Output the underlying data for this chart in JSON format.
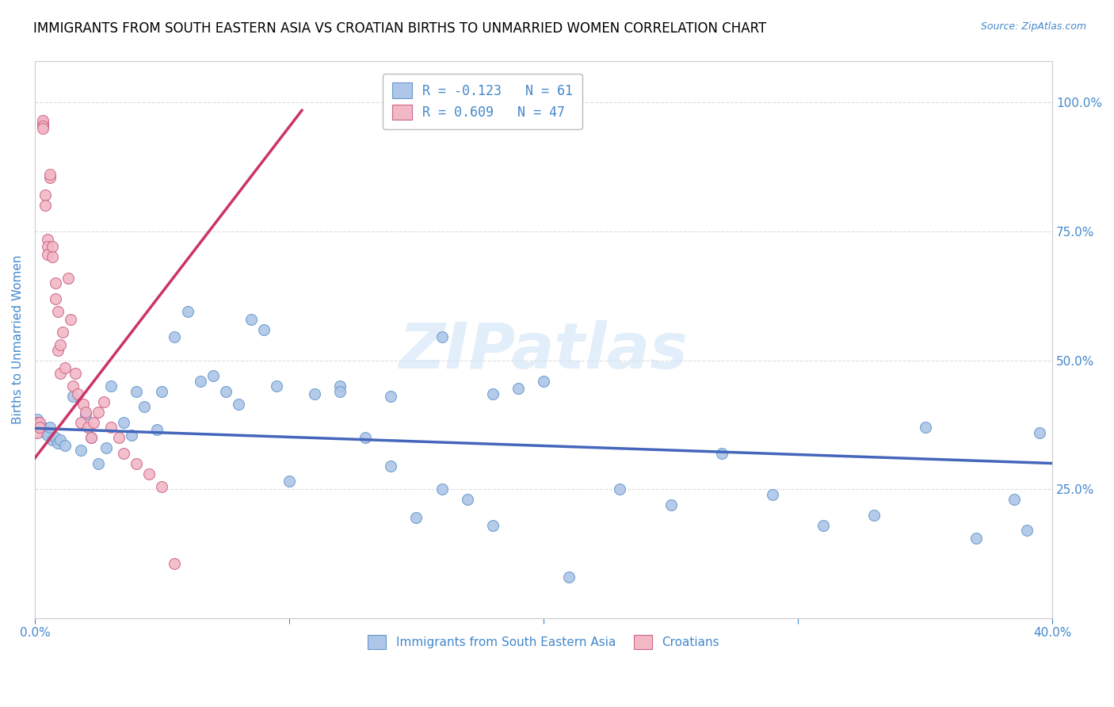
{
  "title": "IMMIGRANTS FROM SOUTH EASTERN ASIA VS CROATIAN BIRTHS TO UNMARRIED WOMEN CORRELATION CHART",
  "source": "Source: ZipAtlas.com",
  "ylabel": "Births to Unmarried Women",
  "right_yticks": [
    "100.0%",
    "75.0%",
    "50.0%",
    "25.0%"
  ],
  "right_ytick_vals": [
    1.0,
    0.75,
    0.5,
    0.25
  ],
  "watermark": "ZIPatlas",
  "legend_top": [
    {
      "label": "R = -0.123   N = 61"
    },
    {
      "label": "R = 0.609   N = 47"
    }
  ],
  "legend_bottom": [
    "Immigrants from South Eastern Asia",
    "Croatians"
  ],
  "blue_scatter_x": [
    0.001,
    0.002,
    0.003,
    0.003,
    0.004,
    0.005,
    0.006,
    0.007,
    0.008,
    0.009,
    0.01,
    0.012,
    0.015,
    0.018,
    0.02,
    0.022,
    0.025,
    0.028,
    0.03,
    0.035,
    0.038,
    0.04,
    0.043,
    0.048,
    0.05,
    0.055,
    0.06,
    0.065,
    0.07,
    0.075,
    0.08,
    0.085,
    0.09,
    0.095,
    0.1,
    0.11,
    0.12,
    0.13,
    0.14,
    0.15,
    0.16,
    0.17,
    0.18,
    0.19,
    0.2,
    0.21,
    0.23,
    0.25,
    0.27,
    0.29,
    0.31,
    0.33,
    0.35,
    0.37,
    0.385,
    0.39,
    0.395,
    0.12,
    0.14,
    0.16,
    0.18
  ],
  "blue_scatter_y": [
    0.385,
    0.375,
    0.37,
    0.365,
    0.36,
    0.355,
    0.37,
    0.345,
    0.35,
    0.34,
    0.345,
    0.335,
    0.43,
    0.325,
    0.395,
    0.35,
    0.3,
    0.33,
    0.45,
    0.38,
    0.355,
    0.44,
    0.41,
    0.365,
    0.44,
    0.545,
    0.595,
    0.46,
    0.47,
    0.44,
    0.415,
    0.58,
    0.56,
    0.45,
    0.265,
    0.435,
    0.45,
    0.35,
    0.295,
    0.195,
    0.25,
    0.23,
    0.18,
    0.445,
    0.46,
    0.08,
    0.25,
    0.22,
    0.32,
    0.24,
    0.18,
    0.2,
    0.37,
    0.155,
    0.23,
    0.17,
    0.36,
    0.44,
    0.43,
    0.545,
    0.435
  ],
  "pink_scatter_x": [
    0.0,
    0.001,
    0.001,
    0.002,
    0.002,
    0.003,
    0.003,
    0.003,
    0.003,
    0.003,
    0.004,
    0.004,
    0.005,
    0.005,
    0.005,
    0.006,
    0.006,
    0.007,
    0.007,
    0.008,
    0.008,
    0.009,
    0.009,
    0.01,
    0.01,
    0.011,
    0.012,
    0.013,
    0.014,
    0.015,
    0.016,
    0.017,
    0.018,
    0.019,
    0.02,
    0.021,
    0.022,
    0.023,
    0.025,
    0.027,
    0.03,
    0.033,
    0.035,
    0.04,
    0.045,
    0.05,
    0.055
  ],
  "pink_scatter_y": [
    0.37,
    0.36,
    0.38,
    0.38,
    0.37,
    0.955,
    0.96,
    0.965,
    0.955,
    0.95,
    0.82,
    0.8,
    0.735,
    0.72,
    0.705,
    0.855,
    0.86,
    0.72,
    0.7,
    0.65,
    0.62,
    0.595,
    0.52,
    0.53,
    0.475,
    0.555,
    0.485,
    0.66,
    0.58,
    0.45,
    0.475,
    0.435,
    0.38,
    0.415,
    0.4,
    0.37,
    0.35,
    0.38,
    0.4,
    0.42,
    0.37,
    0.35,
    0.32,
    0.3,
    0.28,
    0.255,
    0.105
  ],
  "blue_line_x": [
    0.0,
    0.4
  ],
  "blue_line_y": [
    0.368,
    0.3
  ],
  "pink_line_x": [
    0.0,
    0.105
  ],
  "pink_line_y": [
    0.31,
    0.985
  ],
  "scatter_size": 100,
  "blue_color": "#aec6e8",
  "pink_color": "#f2b8c6",
  "blue_edge_color": "#6699cc",
  "pink_edge_color": "#cc6688",
  "blue_line_color": "#4466bb",
  "pink_line_color": "#cc3366",
  "title_fontsize": 12,
  "axis_color": "#4488cc",
  "grid_color": "#dddddd",
  "background_color": "#ffffff",
  "xlim": [
    0.0,
    0.4
  ],
  "ylim": [
    0.0,
    1.08
  ]
}
